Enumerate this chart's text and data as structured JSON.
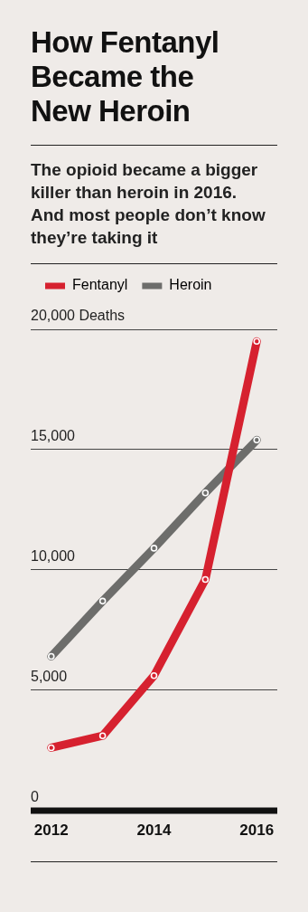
{
  "chart_data": {
    "type": "line",
    "title": "How Fentanyl Became the New Heroin",
    "subtitle": "The opioid became a bigger killer than heroin in 2016. And most people don’t know they’re taking it",
    "x": [
      2012,
      2013,
      2014,
      2015,
      2016
    ],
    "series": [
      {
        "name": "Fentanyl",
        "color": "#d6212f",
        "values": [
          2600,
          3100,
          5600,
          9600,
          19500
        ]
      },
      {
        "name": "Heroin",
        "color": "#6d6d6b",
        "values": [
          6400,
          8700,
          10900,
          13200,
          15400
        ]
      }
    ],
    "xlim": [
      2011.6,
      2016.4
    ],
    "xticks": [
      2012,
      2014,
      2016
    ],
    "ylim": [
      0,
      20000
    ],
    "yticks": [
      {
        "value": 0,
        "label": "0"
      },
      {
        "value": 5000,
        "label": "5,000"
      },
      {
        "value": 10000,
        "label": "10,000"
      },
      {
        "value": 15000,
        "label": "15,000"
      },
      {
        "value": 20000,
        "label": "20,000 Deaths"
      }
    ],
    "grid": "y",
    "legend": "top left",
    "marker": "circle",
    "line_style": "solid"
  }
}
